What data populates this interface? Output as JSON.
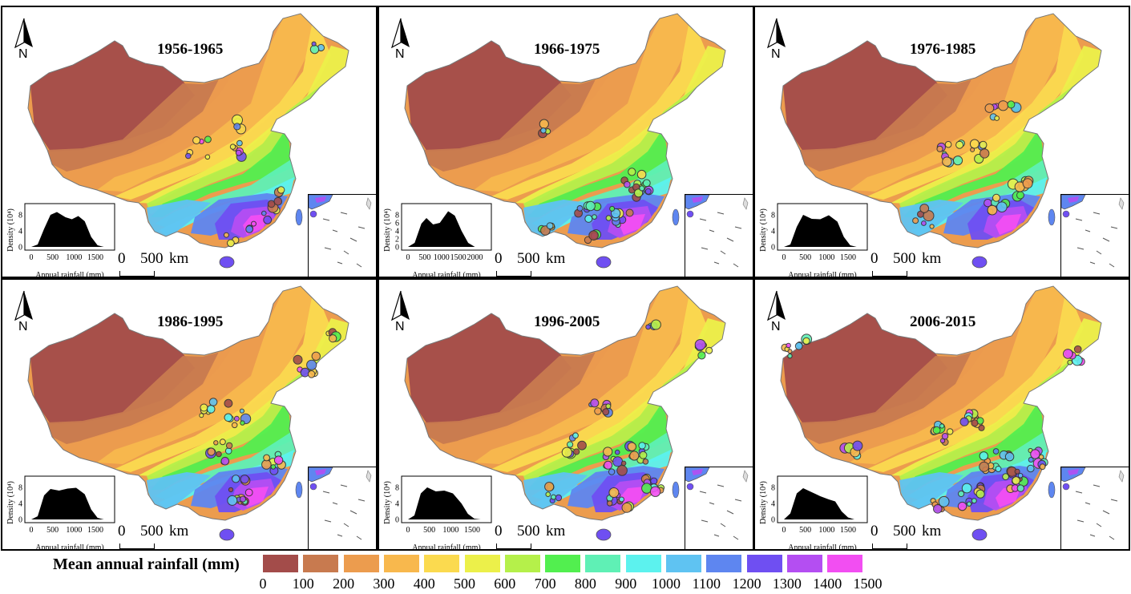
{
  "panels": [
    {
      "title": "1956-1965",
      "density": {
        "ylabel": "Density (10⁴)",
        "xlabel": "Annual rainfall (mm)",
        "yticks": [
          "0",
          "4",
          "8"
        ],
        "xticks": [
          "0",
          "500",
          "1000",
          "1500"
        ],
        "xmax": 1800,
        "curve": [
          [
            0,
            0
          ],
          [
            150,
            0.6
          ],
          [
            300,
            4.5
          ],
          [
            450,
            8.0
          ],
          [
            600,
            8.7
          ],
          [
            800,
            7.4
          ],
          [
            950,
            6.9
          ],
          [
            1100,
            7.7
          ],
          [
            1250,
            6.4
          ],
          [
            1400,
            2.5
          ],
          [
            1550,
            0.4
          ],
          [
            1700,
            0
          ]
        ]
      },
      "north": "N",
      "scale": {
        "zero": "0",
        "value": "500",
        "unit": "km"
      }
    },
    {
      "title": "1966-1975",
      "density": {
        "ylabel": "Density (10⁴)",
        "xlabel": "Annual rainfall (mm)",
        "yticks": [
          "0",
          "2",
          "4",
          "6",
          "8"
        ],
        "xticks": [
          "0",
          "500",
          "1000",
          "1500",
          "2000"
        ],
        "xmax": 2300,
        "curve": [
          [
            0,
            0
          ],
          [
            200,
            1.0
          ],
          [
            400,
            5.8
          ],
          [
            550,
            7.2
          ],
          [
            750,
            5.6
          ],
          [
            950,
            6.0
          ],
          [
            1200,
            8.9
          ],
          [
            1400,
            7.8
          ],
          [
            1600,
            4.0
          ],
          [
            1800,
            1.0
          ],
          [
            2000,
            0
          ]
        ]
      },
      "north": "N",
      "scale": {
        "zero": "0",
        "value": "500",
        "unit": "km"
      }
    },
    {
      "title": "1976-1985",
      "density": {
        "ylabel": "Density (10⁴)",
        "xlabel": "Annual rainfall (mm)",
        "yticks": [
          "0",
          "4",
          "8"
        ],
        "xticks": [
          "0",
          "500",
          "1000",
          "1500"
        ],
        "xmax": 1800,
        "curve": [
          [
            0,
            0
          ],
          [
            150,
            0.6
          ],
          [
            300,
            5.0
          ],
          [
            450,
            8.0
          ],
          [
            650,
            7.0
          ],
          [
            850,
            6.9
          ],
          [
            1050,
            7.9
          ],
          [
            1250,
            6.3
          ],
          [
            1400,
            2.5
          ],
          [
            1550,
            0.4
          ],
          [
            1700,
            0
          ]
        ]
      },
      "north": "N",
      "scale": {
        "zero": "0",
        "value": "500",
        "unit": "km"
      }
    },
    {
      "title": "1986-1995",
      "density": {
        "ylabel": "Density (10⁴)",
        "xlabel": "Annual rainfall (mm)",
        "yticks": [
          "0",
          "4",
          "8"
        ],
        "xticks": [
          "0",
          "500",
          "1000",
          "1500"
        ],
        "xmax": 1800,
        "curve": [
          [
            0,
            0
          ],
          [
            150,
            0.8
          ],
          [
            300,
            6.0
          ],
          [
            450,
            7.6
          ],
          [
            650,
            7.2
          ],
          [
            850,
            7.7
          ],
          [
            1050,
            7.9
          ],
          [
            1250,
            6.3
          ],
          [
            1400,
            2.5
          ],
          [
            1550,
            0.4
          ],
          [
            1700,
            0
          ]
        ]
      },
      "north": "N",
      "scale": {
        "zero": "0",
        "value": "500",
        "unit": "km"
      }
    },
    {
      "title": "1996-2005",
      "density": {
        "ylabel": "Density (10⁴)",
        "xlabel": "Annual rainfall (mm)",
        "yticks": [
          "0",
          "4",
          "8"
        ],
        "xticks": [
          "0",
          "500",
          "1000",
          "1500"
        ],
        "xmax": 1800,
        "curve": [
          [
            0,
            0
          ],
          [
            150,
            1.0
          ],
          [
            300,
            6.5
          ],
          [
            450,
            8.0
          ],
          [
            650,
            7.0
          ],
          [
            850,
            7.2
          ],
          [
            1050,
            6.5
          ],
          [
            1250,
            4.0
          ],
          [
            1400,
            1.4
          ],
          [
            1550,
            0.2
          ],
          [
            1700,
            0
          ]
        ]
      },
      "north": "N",
      "scale": {
        "zero": "0",
        "value": "500",
        "unit": "km"
      }
    },
    {
      "title": "2006-2015",
      "density": {
        "ylabel": "Density (10⁴)",
        "xlabel": "Annual rainfall (mm)",
        "yticks": [
          "0",
          "4",
          "8"
        ],
        "xticks": [
          "0",
          "500",
          "1000",
          "1500"
        ],
        "xmax": 1800,
        "curve": [
          [
            0,
            0
          ],
          [
            150,
            1.5
          ],
          [
            300,
            6.5
          ],
          [
            450,
            7.8
          ],
          [
            650,
            6.8
          ],
          [
            850,
            5.8
          ],
          [
            1050,
            5.0
          ],
          [
            1200,
            4.5
          ],
          [
            1350,
            2.0
          ],
          [
            1500,
            0.5
          ],
          [
            1650,
            0
          ]
        ]
      },
      "north": "N",
      "scale": {
        "zero": "0",
        "value": "500",
        "unit": "km"
      }
    }
  ],
  "legend": {
    "title": "Mean annual rainfall (mm)",
    "colors": [
      "#a34c4a",
      "#c87a4f",
      "#ec9c4e",
      "#f8b84d",
      "#fbda4f",
      "#ecf04a",
      "#b5f04a",
      "#52ef4f",
      "#5ff0b5",
      "#5cf2ee",
      "#5fc3f2",
      "#5e86f0",
      "#6f4ff2",
      "#b44ef2",
      "#f24ef2"
    ],
    "ticks": [
      "0",
      "100",
      "200",
      "300",
      "400",
      "500",
      "600",
      "700",
      "800",
      "900",
      "1000",
      "1100",
      "1200",
      "1300",
      "1400",
      "1500"
    ]
  },
  "icon_names": {
    "north_arrow": "north-arrow-icon"
  }
}
